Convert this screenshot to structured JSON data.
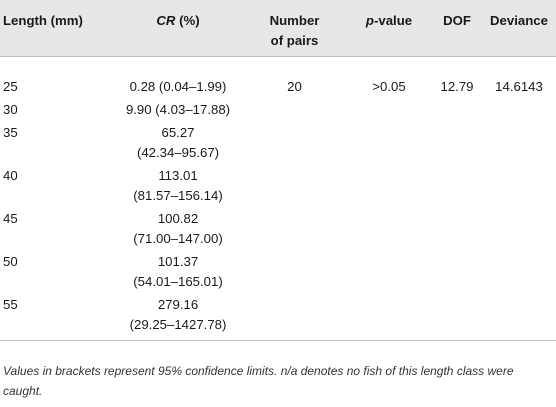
{
  "table": {
    "headers": {
      "length": "Length (mm)",
      "cr_italic": "CR",
      "cr_rest": " (%)",
      "pairs_line1": "Number",
      "pairs_line2": "of pairs",
      "p_italic": "p",
      "p_rest": "-value",
      "dof": "DOF",
      "deviance": "Deviance"
    },
    "summary": {
      "pairs": "20",
      "p_value": ">0.05",
      "dof": "12.79",
      "deviance": "14.6143"
    },
    "rows": [
      {
        "length": "25",
        "cr_line1": "0.28 (0.04–1.99)",
        "cr_line2": ""
      },
      {
        "length": "30",
        "cr_line1": "9.90 (4.03–17.88)",
        "cr_line2": ""
      },
      {
        "length": "35",
        "cr_line1": "65.27",
        "cr_line2": "(42.34–95.67)"
      },
      {
        "length": "40",
        "cr_line1": "113.01",
        "cr_line2": "(81.57–156.14)"
      },
      {
        "length": "45",
        "cr_line1": "100.82",
        "cr_line2": "(71.00–147.00)"
      },
      {
        "length": "50",
        "cr_line1": "101.37",
        "cr_line2": "(54.01–165.01)"
      },
      {
        "length": "55",
        "cr_line1": "279.16",
        "cr_line2": "(29.25–1427.78)"
      }
    ]
  },
  "footnote": "Values in brackets represent 95% confidence limits. n/a denotes no fish of this length class were caught."
}
